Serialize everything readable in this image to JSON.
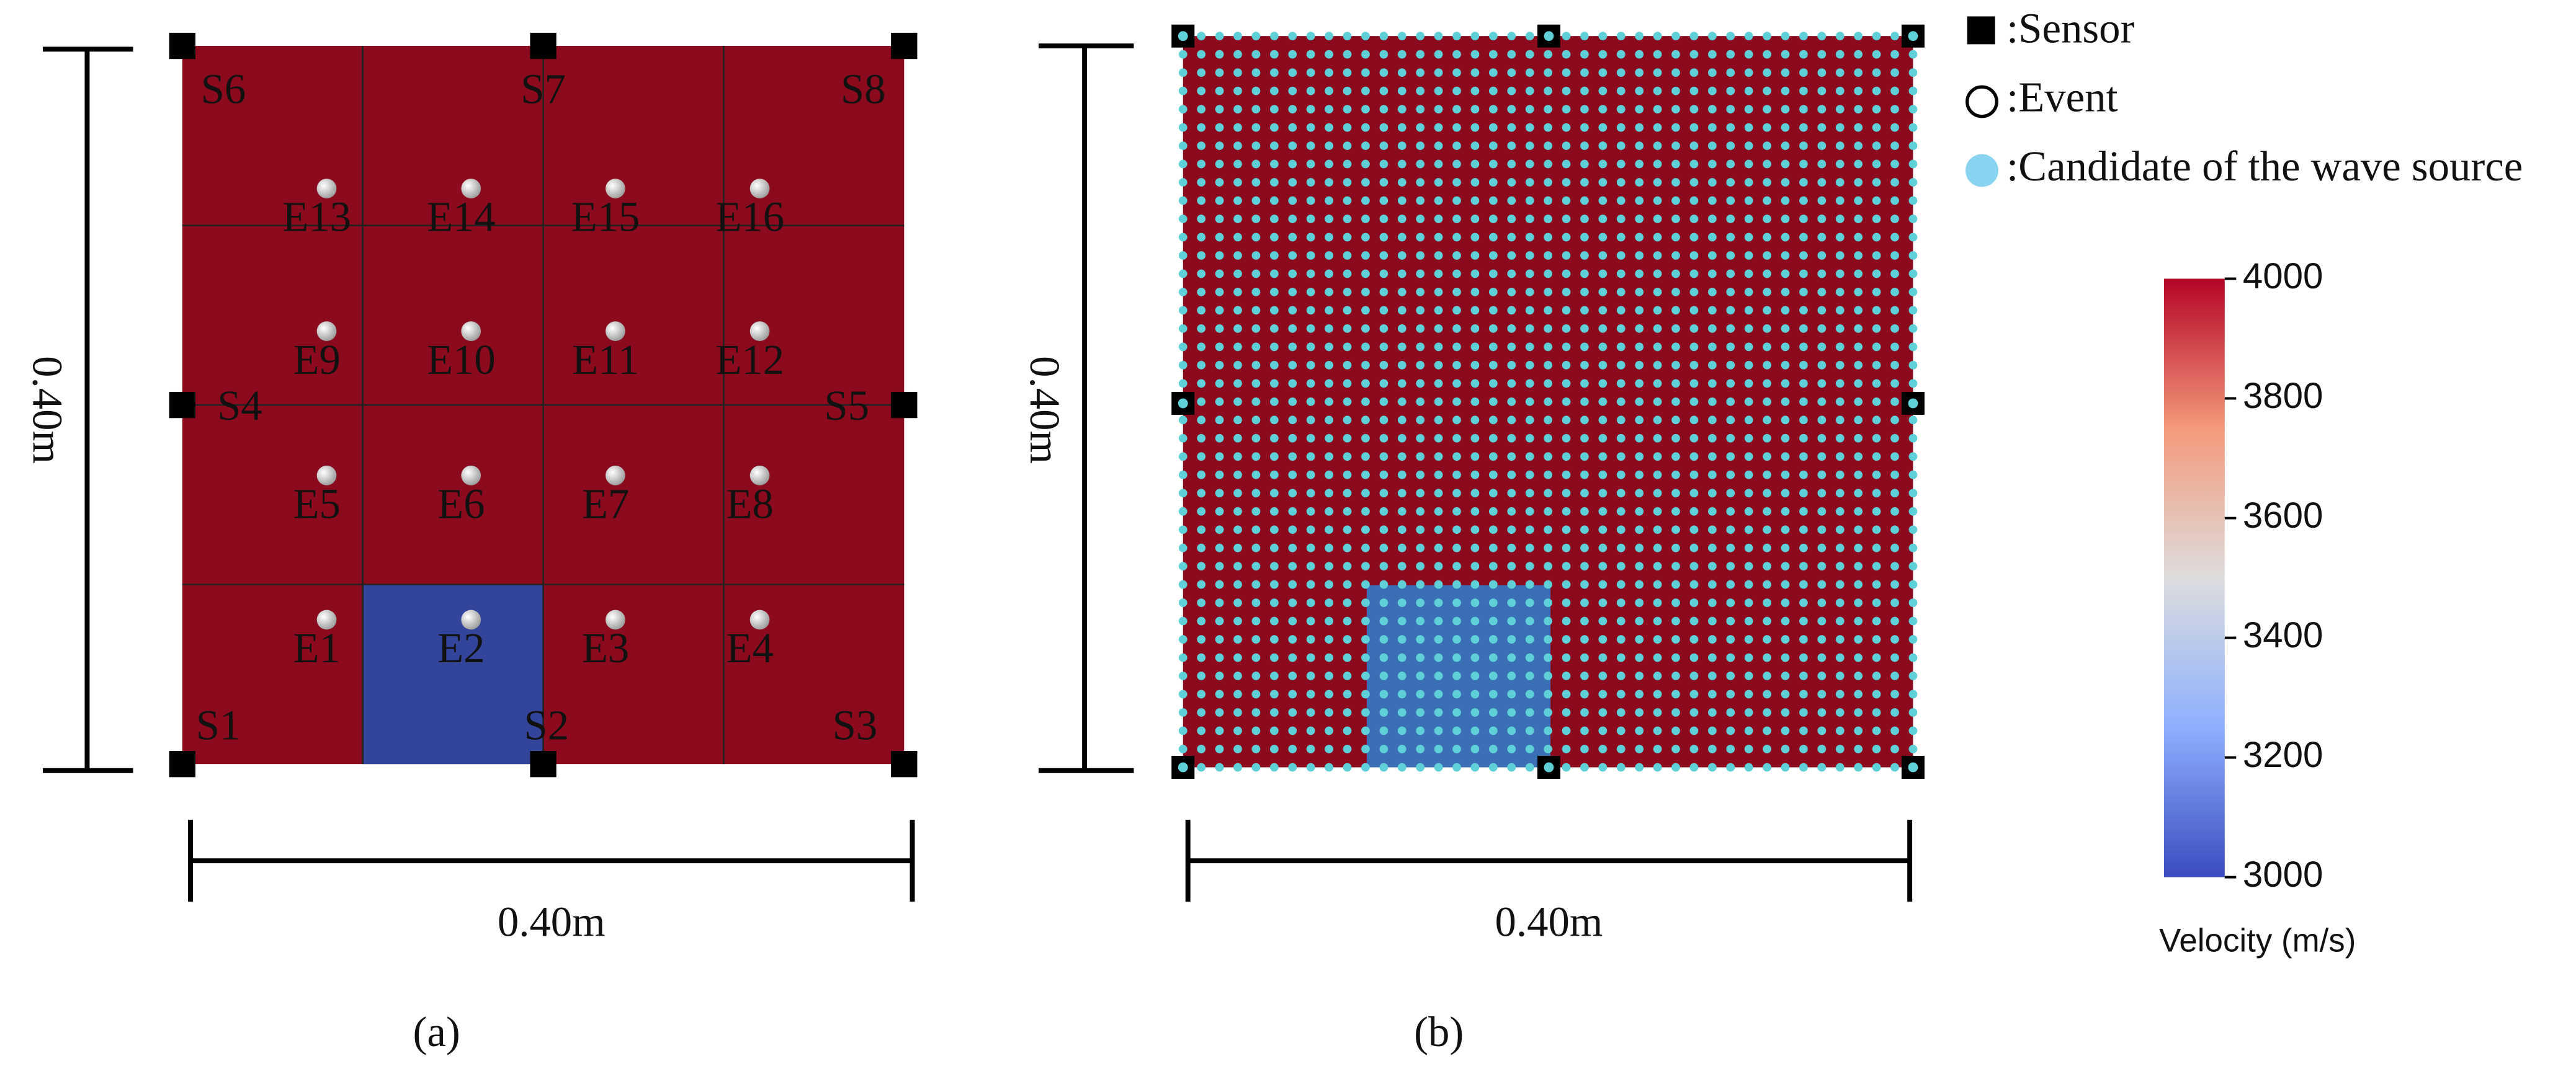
{
  "panel_a": {
    "label": "(a)",
    "width_label": "0.40m",
    "height_label": "0.40m",
    "sensors": [
      "S1",
      "S2",
      "S3",
      "S4",
      "S5",
      "S6",
      "S7",
      "S8"
    ],
    "events": [
      "E1",
      "E2",
      "E3",
      "E4",
      "E5",
      "E6",
      "E7",
      "E8",
      "E9",
      "E10",
      "E11",
      "E12",
      "E13",
      "E14",
      "E15",
      "E16"
    ]
  },
  "panel_b": {
    "label": "(b)",
    "width_label": "0.40m",
    "height_label": "0.40m"
  },
  "legend": [
    ":Sensor",
    ":Event",
    ":Candidate of the wave source"
  ],
  "colorbar": {
    "title": "Velocity (m/s)",
    "lim": [
      3000,
      4000
    ],
    "ticks": [
      3000,
      3200,
      3400,
      3600,
      3800,
      4000
    ]
  }
}
